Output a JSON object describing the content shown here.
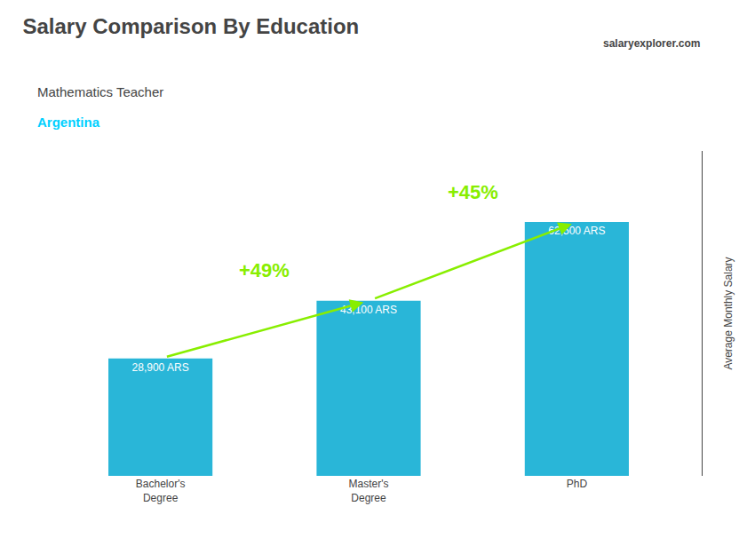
{
  "chart_data": {
    "type": "bar",
    "title": "Salary Comparison By Education",
    "subtitle": "Mathematics Teacher",
    "annotations": [
      {
        "text": "Argentina",
        "color": "#00d0ff"
      },
      {
        "text": "salaryexplorer.com"
      },
      {
        "text": "+49%",
        "from": "Bachelor's\nDegree",
        "to": "Master's\nDegree",
        "color": "#88ee00"
      },
      {
        "text": "+45%",
        "from": "Master's\nDegree",
        "to": "PhD",
        "color": "#88ee00"
      }
    ],
    "categories": [
      "Bachelor's\nDegree",
      "Master's\nDegree",
      "PhD"
    ],
    "values": [
      28900,
      43100,
      62500
    ],
    "value_labels": [
      "28,900 ARS",
      "43,100 ARS",
      "62,500 ARS"
    ],
    "data_labels": true,
    "color": "#29b6d8",
    "ylabel": "Average Monthly Salary",
    "ylim": [
      0,
      80000
    ],
    "tick_labels": "x",
    "grid": false
  }
}
